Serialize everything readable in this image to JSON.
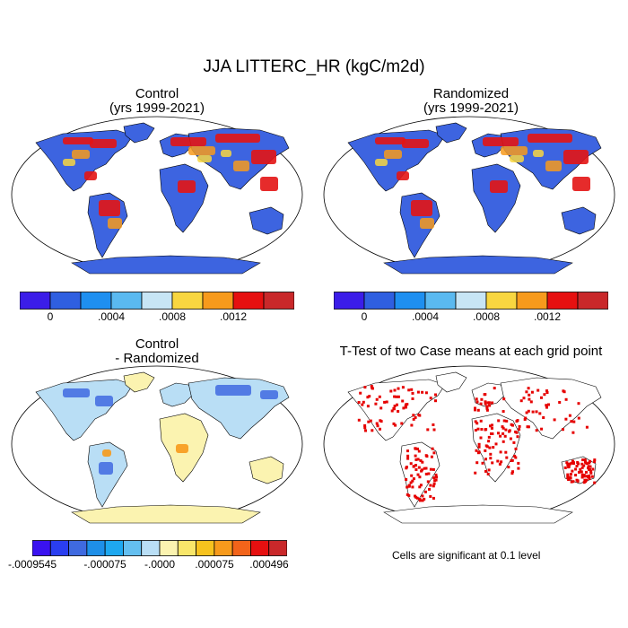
{
  "figure_title": "JJA LITTERC_HR (kgC/m2d)",
  "panels": [
    {
      "title_line1": "Control",
      "title_line2": "(yrs 1999-2021)"
    },
    {
      "title_line1": "Randomized",
      "title_line2": "(yrs 1999-2021)"
    },
    {
      "title_line1": "Control",
      "title_line2": "- Randomized"
    },
    {
      "title_line1": "T-Test of two Case means at each grid point",
      "title_line2": ""
    }
  ],
  "colorbar_top": {
    "colors": [
      "#3b1de8",
      "#2f5fe0",
      "#1e8ff0",
      "#5ab9f0",
      "#c7e5f5",
      "#f8d640",
      "#f79a1c",
      "#e61010",
      "#c9282a"
    ],
    "labels": [
      "0",
      ".0004",
      ".0008",
      ".0012"
    ]
  },
  "colorbar_diff": {
    "colors": [
      "#3a12f0",
      "#2a3ef0",
      "#3f6ae0",
      "#1e8fe8",
      "#1ea8f0",
      "#64bff0",
      "#b9def5",
      "#fbf3b0",
      "#f8e66a",
      "#f6c21e",
      "#f79a1c",
      "#f2641a",
      "#e61010",
      "#c9282a"
    ],
    "labels": [
      "-.0009545",
      "-.000075",
      "-.0000",
      ".000075",
      ".000496"
    ]
  },
  "ttest_note": "Cells are significant at 0.1 level",
  "colors": {
    "ocean": "#ffffff",
    "land_low": "#3d64e0",
    "land_mid": "#1ea0f0",
    "land_high": "#e31414",
    "land_warm": "#f79a1c",
    "land_yellow": "#f8d640",
    "diff_pos": "#fbf3b0",
    "diff_neg": "#3f6ae0",
    "signif": "#e60000"
  }
}
